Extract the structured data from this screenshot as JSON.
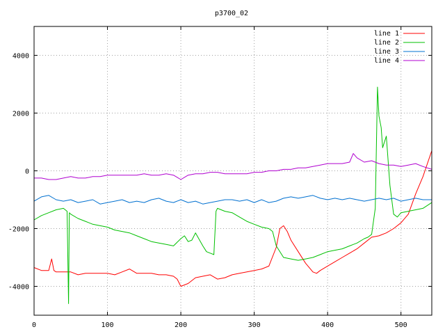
{
  "chart_data": {
    "type": "line",
    "title": "p3700_02",
    "xlabel": "",
    "ylabel": "",
    "xlim": [
      0,
      542
    ],
    "ylim": [
      -5000,
      5000
    ],
    "xticks": [
      0,
      100,
      200,
      300,
      400,
      500
    ],
    "yticks": [
      -4000,
      -2000,
      0,
      2000,
      4000
    ],
    "grid": true,
    "legend_position": "top-right",
    "series": [
      {
        "name": "line 1",
        "color": "#ff0000",
        "x": [
          0,
          10,
          20,
          24,
          27,
          30,
          40,
          50,
          60,
          70,
          80,
          90,
          100,
          110,
          120,
          130,
          140,
          150,
          160,
          170,
          180,
          190,
          195,
          200,
          210,
          220,
          230,
          240,
          250,
          260,
          270,
          280,
          290,
          300,
          310,
          320,
          330,
          335,
          340,
          345,
          350,
          360,
          370,
          380,
          385,
          390,
          400,
          410,
          420,
          430,
          440,
          450,
          460,
          470,
          480,
          490,
          500,
          510,
          520,
          530,
          542
        ],
        "y": [
          -3350,
          -3450,
          -3450,
          -3050,
          -3450,
          -3500,
          -3500,
          -3500,
          -3600,
          -3550,
          -3550,
          -3550,
          -3550,
          -3600,
          -3500,
          -3400,
          -3550,
          -3550,
          -3550,
          -3600,
          -3600,
          -3650,
          -3750,
          -4000,
          -3900,
          -3700,
          -3650,
          -3600,
          -3750,
          -3700,
          -3600,
          -3550,
          -3500,
          -3450,
          -3400,
          -3300,
          -2650,
          -2000,
          -1900,
          -2100,
          -2400,
          -2800,
          -3200,
          -3500,
          -3550,
          -3450,
          -3300,
          -3150,
          -3000,
          -2850,
          -2700,
          -2500,
          -2300,
          -2250,
          -2150,
          -2000,
          -1800,
          -1500,
          -800,
          -200,
          700
        ]
      },
      {
        "name": "line 2",
        "color": "#00c000",
        "x": [
          0,
          10,
          20,
          30,
          40,
          45,
          47,
          48,
          50,
          60,
          70,
          80,
          90,
          100,
          110,
          120,
          130,
          140,
          150,
          160,
          170,
          180,
          190,
          200,
          205,
          210,
          215,
          220,
          230,
          235,
          240,
          245,
          248,
          250,
          260,
          270,
          280,
          290,
          300,
          310,
          320,
          325,
          330,
          340,
          350,
          360,
          370,
          380,
          390,
          400,
          410,
          420,
          430,
          440,
          450,
          455,
          460,
          465,
          468,
          470,
          473,
          475,
          480,
          485,
          490,
          495,
          500,
          510,
          520,
          530,
          542
        ],
        "y": [
          -1700,
          -1550,
          -1450,
          -1350,
          -1300,
          -1400,
          -4600,
          -1450,
          -1500,
          -1650,
          -1750,
          -1850,
          -1900,
          -1950,
          -2050,
          -2100,
          -2150,
          -2250,
          -2350,
          -2450,
          -2500,
          -2550,
          -2600,
          -2350,
          -2250,
          -2450,
          -2400,
          -2150,
          -2600,
          -2800,
          -2850,
          -2900,
          -1400,
          -1300,
          -1400,
          -1450,
          -1600,
          -1750,
          -1850,
          -1950,
          -2000,
          -2100,
          -2600,
          -3000,
          -3050,
          -3100,
          -3050,
          -3000,
          -2900,
          -2800,
          -2750,
          -2700,
          -2600,
          -2500,
          -2350,
          -2300,
          -2200,
          -1300,
          2900,
          1900,
          1500,
          800,
          1200,
          -500,
          -1500,
          -1600,
          -1450,
          -1400,
          -1350,
          -1300,
          -1100
        ]
      },
      {
        "name": "line 3",
        "color": "#0070d0",
        "x": [
          0,
          10,
          20,
          30,
          40,
          50,
          60,
          70,
          80,
          90,
          100,
          110,
          120,
          130,
          140,
          150,
          160,
          170,
          180,
          190,
          200,
          210,
          220,
          230,
          240,
          250,
          260,
          270,
          280,
          290,
          300,
          310,
          320,
          330,
          340,
          350,
          360,
          370,
          380,
          390,
          400,
          410,
          420,
          430,
          440,
          450,
          460,
          470,
          480,
          490,
          500,
          510,
          520,
          530,
          542
        ],
        "y": [
          -1050,
          -900,
          -850,
          -1000,
          -1050,
          -1000,
          -1100,
          -1050,
          -1000,
          -1150,
          -1100,
          -1050,
          -1000,
          -1100,
          -1050,
          -1100,
          -1000,
          -950,
          -1050,
          -1100,
          -1000,
          -1100,
          -1050,
          -1150,
          -1100,
          -1050,
          -1000,
          -1000,
          -1050,
          -1000,
          -1100,
          -1000,
          -1100,
          -1050,
          -950,
          -900,
          -950,
          -900,
          -850,
          -950,
          -1000,
          -950,
          -1000,
          -950,
          -1000,
          -1050,
          -1000,
          -950,
          -1000,
          -950,
          -1050,
          -1000,
          -950,
          -1000,
          -1000
        ]
      },
      {
        "name": "line 4",
        "color": "#b000d0",
        "x": [
          0,
          10,
          20,
          30,
          40,
          50,
          60,
          70,
          80,
          90,
          100,
          110,
          120,
          130,
          140,
          150,
          160,
          170,
          180,
          190,
          200,
          210,
          220,
          230,
          240,
          250,
          260,
          270,
          280,
          290,
          300,
          310,
          320,
          330,
          340,
          350,
          360,
          370,
          380,
          390,
          400,
          410,
          420,
          430,
          435,
          440,
          450,
          460,
          470,
          480,
          490,
          500,
          510,
          520,
          530,
          542
        ],
        "y": [
          -250,
          -250,
          -300,
          -300,
          -250,
          -200,
          -250,
          -250,
          -200,
          -200,
          -150,
          -150,
          -150,
          -150,
          -150,
          -100,
          -150,
          -150,
          -100,
          -150,
          -300,
          -150,
          -100,
          -100,
          -50,
          -50,
          -100,
          -100,
          -100,
          -100,
          -50,
          -50,
          0,
          0,
          50,
          50,
          100,
          100,
          150,
          200,
          250,
          250,
          250,
          300,
          600,
          450,
          300,
          350,
          250,
          200,
          200,
          150,
          200,
          250,
          150,
          50
        ]
      }
    ]
  }
}
